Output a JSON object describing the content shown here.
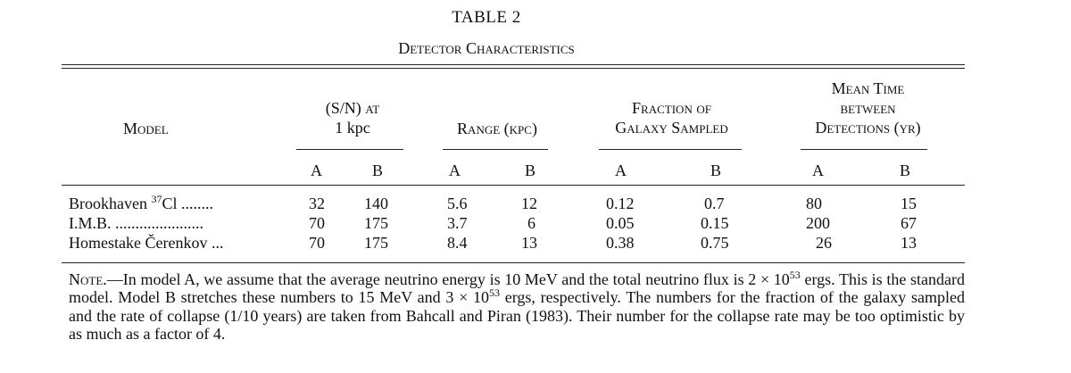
{
  "table": {
    "title": "TABLE 2",
    "subtitle": "Detector Characteristics",
    "headers": {
      "model": "Model",
      "sn_line1": "(S/N) at",
      "sn_line2": "1 kpc",
      "range": "Range (kpc)",
      "fraction_line1": "Fraction of",
      "fraction_line2": "Galaxy Sampled",
      "mean_line1": "Mean Time",
      "mean_line2": "between",
      "mean_line3": "Detections (yr)"
    },
    "subheaders": [
      "A",
      "B",
      "A",
      "B",
      "A",
      "B",
      "A",
      "B"
    ],
    "rows": [
      {
        "label_pre": "Brookhaven ",
        "label_sup": "37",
        "label_post": "Cl ........",
        "values": [
          "32",
          "140",
          "5.6",
          "12",
          "0.12",
          "0.7",
          "80",
          "15"
        ]
      },
      {
        "label_pre": "I.M.B. ......................",
        "label_sup": "",
        "label_post": "",
        "values": [
          "70",
          "175",
          "3.7",
          "6",
          "0.05",
          "0.15",
          "200",
          "67"
        ]
      },
      {
        "label_pre": "Homestake Čerenkov ...",
        "label_sup": "",
        "label_post": "",
        "values": [
          "70",
          "175",
          "8.4",
          "13",
          "0.38",
          "0.75",
          "26",
          "13"
        ]
      }
    ],
    "note": {
      "lead": "Note",
      "dash": ".—",
      "p1": "In model A, we assume that the average neutrino energy is 10 MeV and the total neutrino flux is 2 × 10",
      "sup1": "53",
      "p2": " ergs. This is the standard model. Model B stretches these numbers to 15 MeV and 3 × 10",
      "sup2": "53",
      "p3": " ergs, respectively. The numbers for the fraction of the galaxy sampled and the rate of collapse (1/10 years) are taken from Bahcall and Piran (1983). Their number for the collapse rate may be too optimistic by as much as a factor of 4."
    }
  }
}
